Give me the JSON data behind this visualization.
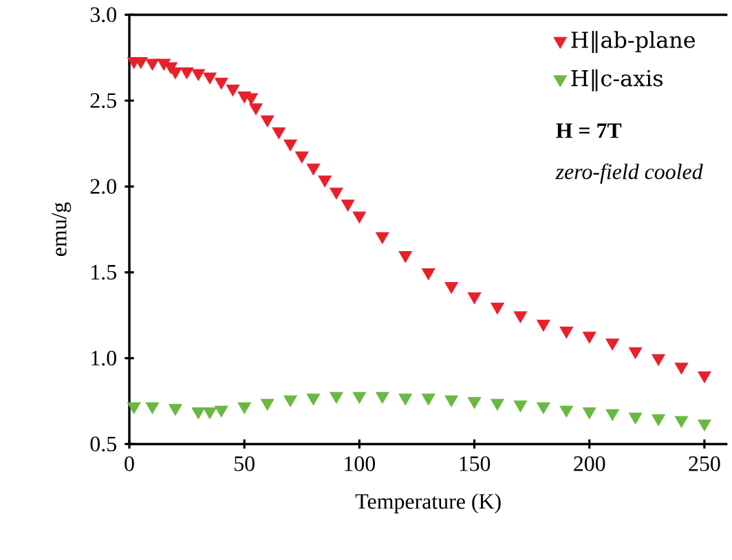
{
  "chart_data": {
    "type": "scatter",
    "xlabel": "Temperature (K)",
    "ylabel": "emu/g",
    "xlim": [
      0,
      260
    ],
    "ylim": [
      0.5,
      3.0
    ],
    "xticks": [
      0,
      50,
      100,
      150,
      200,
      250
    ],
    "yticks": [
      {
        "value": 0.5,
        "label": "0.5"
      },
      {
        "value": 1,
        "label": "1.0"
      },
      {
        "value": 1.5,
        "label": "1.5"
      },
      {
        "value": 2,
        "label": "2.0"
      },
      {
        "value": 2.5,
        "label": "2.5"
      },
      {
        "value": 3,
        "label": "3.0"
      }
    ],
    "legend": "top right",
    "marker": "triangle",
    "annotations": [
      "**H = 7T**",
      "*zero-field cooled*"
    ],
    "series": [
      {
        "name": "H‖ab-plane",
        "color": "#e8202a",
        "x": [
          2,
          5,
          10,
          15,
          18,
          20,
          25,
          30,
          35,
          40,
          45,
          50,
          53,
          55,
          60,
          65,
          70,
          75,
          80,
          85,
          90,
          95,
          100,
          110,
          120,
          130,
          140,
          150,
          160,
          170,
          180,
          190,
          200,
          210,
          220,
          230,
          240,
          250
        ],
        "values": [
          2.73,
          2.73,
          2.72,
          2.72,
          2.7,
          2.67,
          2.67,
          2.66,
          2.64,
          2.61,
          2.57,
          2.53,
          2.52,
          2.46,
          2.39,
          2.32,
          2.25,
          2.18,
          2.11,
          2.04,
          1.97,
          1.9,
          1.83,
          1.71,
          1.6,
          1.5,
          1.42,
          1.36,
          1.3,
          1.25,
          1.2,
          1.16,
          1.13,
          1.09,
          1.04,
          1.0,
          0.95,
          0.9
        ]
      },
      {
        "name": "H‖c-axis",
        "color": "#6ab842",
        "x": [
          2,
          10,
          20,
          30,
          35,
          40,
          50,
          60,
          70,
          80,
          90,
          100,
          110,
          120,
          130,
          140,
          150,
          160,
          170,
          180,
          190,
          200,
          210,
          220,
          230,
          240,
          250
        ],
        "values": [
          0.72,
          0.72,
          0.71,
          0.69,
          0.69,
          0.7,
          0.72,
          0.74,
          0.76,
          0.77,
          0.78,
          0.78,
          0.78,
          0.77,
          0.77,
          0.76,
          0.75,
          0.74,
          0.73,
          0.72,
          0.7,
          0.69,
          0.68,
          0.66,
          0.65,
          0.64,
          0.62
        ]
      }
    ]
  }
}
